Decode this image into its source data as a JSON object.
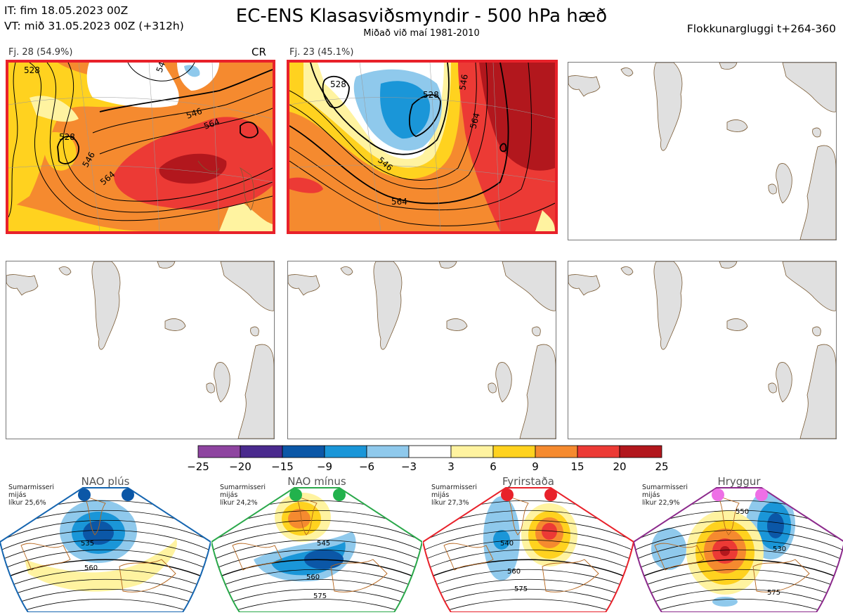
{
  "header": {
    "it_line": "IT: fim 18.05.2023 00Z",
    "vt_line": "VT: mið 31.05.2023 00Z  (+312h)",
    "title": "EC-ENS Klasasviðsmyndir - 500 hPa hæð",
    "subtitle": "Miðað við maí 1981-2010",
    "window": "Flokkunargluggi t+264-360"
  },
  "clusters": [
    {
      "label": "Fj. 28 (54.9%)",
      "tag": "CR",
      "contours": [
        "528",
        "546",
        "564",
        "546",
        "564",
        "546"
      ]
    },
    {
      "label": "Fj. 23 (45.1%)",
      "tag": "",
      "contours": [
        "528",
        "528",
        "546",
        "546",
        "564",
        "564"
      ]
    }
  ],
  "colorbar": {
    "ticks": [
      "−25",
      "−20",
      "−15",
      "−9",
      "−6",
      "−3",
      "3",
      "6",
      "9",
      "15",
      "20",
      "25"
    ],
    "colors": [
      "#8e44a0",
      "#4a2a8e",
      "#0b57a7",
      "#1a96d8",
      "#8fc9ec",
      "#ffffff",
      "#fff3a0",
      "#ffd21f",
      "#f58a2f",
      "#ec3a35",
      "#b2171d"
    ]
  },
  "regimes": [
    {
      "name": "NAO plús",
      "season": "Sumarmisseri",
      "unit": "mijás",
      "prob": "líkur 25,6%",
      "dot_color": "#0b57a7",
      "border_color": "#1565b0",
      "contours": [
        "535",
        "560"
      ]
    },
    {
      "name": "NAO mínus",
      "season": "Sumarmisseri",
      "unit": "mijás",
      "prob": "líkur 24,2%",
      "dot_color": "#22b24c",
      "border_color": "#2aa84a",
      "contours": [
        "545",
        "560",
        "575"
      ]
    },
    {
      "name": "Fyrirstaða",
      "season": "Sumarmisseri",
      "unit": "mijás",
      "prob": "líkur 27,3%",
      "dot_color": "#e8212a",
      "border_color": "#e8212a",
      "contours": [
        "540",
        "560",
        "575"
      ]
    },
    {
      "name": "Hryggur",
      "season": "Sumarmisseri",
      "unit": "mijás",
      "prob": "líkur 22,9%",
      "dot_color": "#ee6fe6",
      "border_color": "#8c2a8c",
      "contours": [
        "550",
        "530",
        "575"
      ]
    }
  ]
}
